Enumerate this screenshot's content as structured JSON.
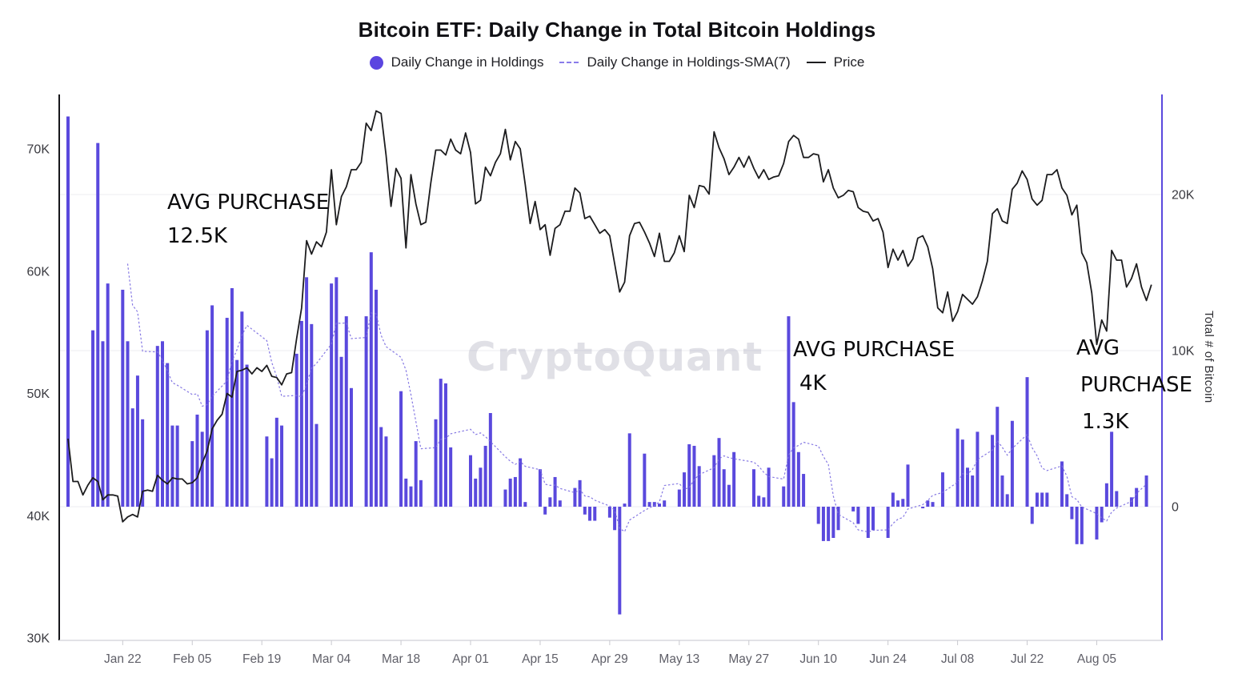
{
  "title": "Bitcoin ETF: Daily Change in Total Bitcoin Holdings",
  "watermark": "CryptoQuant",
  "legend": [
    {
      "label": "Daily Change in Holdings",
      "marker": "circle",
      "color": "#5b45e0"
    },
    {
      "label": "Daily Change in Holdings-SMA(7)",
      "marker": "dashed-line",
      "color": "#8a7cea"
    },
    {
      "label": "Price",
      "marker": "line",
      "color": "#1d1d1f"
    }
  ],
  "annotations": [
    {
      "lines": [
        "AVG PURCHASE",
        "12.5K"
      ]
    },
    {
      "lines": [
        "AVG PURCHASE",
        "4K"
      ]
    },
    {
      "lines": [
        "AVG",
        "PURCHASE",
        "1.3K"
      ]
    }
  ],
  "chart_data": {
    "type": "bar+line",
    "title": "Bitcoin ETF: Daily Change in Total Bitcoin Holdings",
    "start_date": "2024-01-11",
    "units": {
      "bars": "thousands of BTC",
      "price": "thousands of USD"
    },
    "grid": "horizontal-right-axis-only",
    "legend_position": "top-center",
    "x_axis": {
      "ticks": [
        {
          "label": "Jan 22",
          "day": 11
        },
        {
          "label": "Feb 05",
          "day": 25
        },
        {
          "label": "Feb 19",
          "day": 39
        },
        {
          "label": "Mar 04",
          "day": 53
        },
        {
          "label": "Mar 18",
          "day": 67
        },
        {
          "label": "Apr 01",
          "day": 81
        },
        {
          "label": "Apr 15",
          "day": 95
        },
        {
          "label": "Apr 29",
          "day": 109
        },
        {
          "label": "May 13",
          "day": 123
        },
        {
          "label": "May 27",
          "day": 137
        },
        {
          "label": "Jun 10",
          "day": 151
        },
        {
          "label": "Jun 24",
          "day": 165
        },
        {
          "label": "Jul 08",
          "day": 179
        },
        {
          "label": "Jul 22",
          "day": 193
        },
        {
          "label": "Aug 05",
          "day": 207
        }
      ]
    },
    "y_axis_left": {
      "ticks": [
        {
          "label": "70K",
          "value": 70
        },
        {
          "label": "60K",
          "value": 60
        },
        {
          "label": "50K",
          "value": 50
        },
        {
          "label": "40K",
          "value": 40
        },
        {
          "label": "30K",
          "value": 30
        }
      ],
      "range_k_usd": [
        30,
        74.5
      ]
    },
    "y_axis_right": {
      "title": "Total # of Bitcoin",
      "ticks": [
        {
          "label": "20K",
          "value": 20
        },
        {
          "label": "10K",
          "value": 10
        },
        {
          "label": "0",
          "value": 0
        }
      ],
      "range_k_btc": [
        -8.5,
        26.4
      ]
    },
    "series": [
      {
        "name": "Daily Change in Holdings",
        "type": "bar",
        "color": "#5a49dd",
        "values_k_btc": [
          25.0,
          0,
          0,
          0,
          0,
          11.3,
          23.3,
          10.6,
          14.3,
          0,
          0,
          13.9,
          10.6,
          6.3,
          8.4,
          5.6,
          0,
          0,
          10.3,
          10.6,
          9.2,
          5.2,
          5.2,
          0,
          0,
          4.2,
          5.9,
          4.8,
          11.3,
          12.9,
          0,
          0,
          12.1,
          14.0,
          9.4,
          12.5,
          9.1,
          0,
          0,
          0,
          4.5,
          3.1,
          5.7,
          5.2,
          0,
          0,
          9.8,
          11.9,
          14.7,
          11.7,
          5.3,
          0,
          0,
          14.3,
          14.7,
          9.6,
          12.2,
          7.6,
          0,
          0,
          12.2,
          16.3,
          13.9,
          5.1,
          4.5,
          0,
          0,
          7.4,
          1.8,
          1.3,
          4.2,
          1.7,
          0,
          0,
          5.6,
          8.2,
          7.9,
          3.8,
          0,
          0,
          0,
          3.3,
          1.8,
          2.5,
          3.9,
          6.0,
          0,
          0,
          1.1,
          1.8,
          1.9,
          3.1,
          0.3,
          0,
          0,
          2.4,
          -0.5,
          0.6,
          1.9,
          0.4,
          0,
          0,
          1.2,
          1.7,
          -0.5,
          -0.9,
          -0.9,
          0,
          0,
          -0.7,
          -1.5,
          -6.9,
          0.2,
          4.7,
          0,
          0,
          3.4,
          0.3,
          0.3,
          0.2,
          0.4,
          0,
          0,
          1.1,
          2.2,
          4.0,
          3.9,
          2.6,
          0,
          0,
          3.3,
          4.4,
          2.4,
          1.4,
          3.5,
          0,
          0,
          0,
          2.4,
          0.7,
          0.6,
          2.5,
          0,
          0,
          1.3,
          12.2,
          6.7,
          3.5,
          2.1,
          0,
          0,
          -1.1,
          -2.2,
          -2.2,
          -2.0,
          -1.5,
          0,
          0,
          -0.3,
          -1.1,
          0,
          -2.0,
          -1.5,
          0,
          0,
          -2.0,
          0.9,
          0.4,
          0.5,
          2.7,
          0,
          0,
          -0.1,
          0.4,
          0.3,
          0,
          2.2,
          0,
          0,
          5.0,
          4.3,
          2.5,
          2.0,
          4.8,
          0,
          0,
          4.6,
          6.4,
          2.0,
          0.8,
          5.5,
          0,
          0,
          8.3,
          -1.1,
          0.9,
          0.9,
          0.9,
          0,
          0,
          2.9,
          0.8,
          -0.8,
          -2.4,
          -2.4,
          0,
          0,
          -2.1,
          -1.0,
          1.5,
          4.8,
          1.0,
          0,
          0,
          0.6,
          1.2,
          0,
          2.0,
          0
        ]
      },
      {
        "name": "Daily Change in Holdings-SMA(7)",
        "type": "line-dashed",
        "color": "#7f72e2",
        "window": 7,
        "derived": "7-period moving average of nonzero bar values"
      },
      {
        "name": "Price",
        "type": "line",
        "color": "#1c1c1e",
        "values_k_usd": [
          46.3,
          42.8,
          42.8,
          41.7,
          42.5,
          43.1,
          42.8,
          41.3,
          41.7,
          41.7,
          41.6,
          39.5,
          39.9,
          40.1,
          39.9,
          42.0,
          42.1,
          42.0,
          43.3,
          42.9,
          42.6,
          43.1,
          43.0,
          43.0,
          42.6,
          42.7,
          43.1,
          44.3,
          45.3,
          47.1,
          47.8,
          48.3,
          50.0,
          49.7,
          51.8,
          51.9,
          52.1,
          51.6,
          52.1,
          51.8,
          52.3,
          51.4,
          51.3,
          50.7,
          51.6,
          51.7,
          54.5,
          57.0,
          62.5,
          61.4,
          62.4,
          62.0,
          63.2,
          68.3,
          63.8,
          66.1,
          66.9,
          68.3,
          68.3,
          68.9,
          72.1,
          71.5,
          73.1,
          72.9,
          69.5,
          65.3,
          68.4,
          67.6,
          61.9,
          67.9,
          65.5,
          63.8,
          64.0,
          67.2,
          69.9,
          69.9,
          69.5,
          70.8,
          69.9,
          69.6,
          71.3,
          69.7,
          65.5,
          65.8,
          68.5,
          67.8,
          68.9,
          69.6,
          71.6,
          69.1,
          70.6,
          70.0,
          67.1,
          63.9,
          65.7,
          63.4,
          63.8,
          61.3,
          63.5,
          63.8,
          64.9,
          64.9,
          66.8,
          66.4,
          64.3,
          64.5,
          63.8,
          63.1,
          63.4,
          62.9,
          60.6,
          58.3,
          59.1,
          62.9,
          63.9,
          64.0,
          63.2,
          62.3,
          61.2,
          63.1,
          60.8,
          60.8,
          61.5,
          62.9,
          61.6,
          66.2,
          65.2,
          67.0,
          66.9,
          66.3,
          71.4,
          70.1,
          69.2,
          67.9,
          68.5,
          69.3,
          68.5,
          69.4,
          68.4,
          67.6,
          68.3,
          67.5,
          67.7,
          67.8,
          68.8,
          70.6,
          71.1,
          70.8,
          69.3,
          69.3,
          69.6,
          69.5,
          67.3,
          68.3,
          66.8,
          66.0,
          66.2,
          66.6,
          66.5,
          65.2,
          64.9,
          64.8,
          64.1,
          64.3,
          63.2,
          60.3,
          61.8,
          60.9,
          61.7,
          60.4,
          61.0,
          62.7,
          62.9,
          62.0,
          60.2,
          57.0,
          56.6,
          58.3,
          55.9,
          56.7,
          58.1,
          57.7,
          57.3,
          57.9,
          59.2,
          60.8,
          64.7,
          65.1,
          64.1,
          63.9,
          66.7,
          67.2,
          68.2,
          67.5,
          65.9,
          65.4,
          65.8,
          67.9,
          67.9,
          68.3,
          66.8,
          66.2,
          64.6,
          65.4,
          61.5,
          60.7,
          58.2,
          54.0,
          56.0,
          55.1,
          61.7,
          60.9,
          60.9,
          58.7,
          59.4,
          60.6,
          58.7,
          57.6,
          58.9
        ]
      }
    ]
  }
}
